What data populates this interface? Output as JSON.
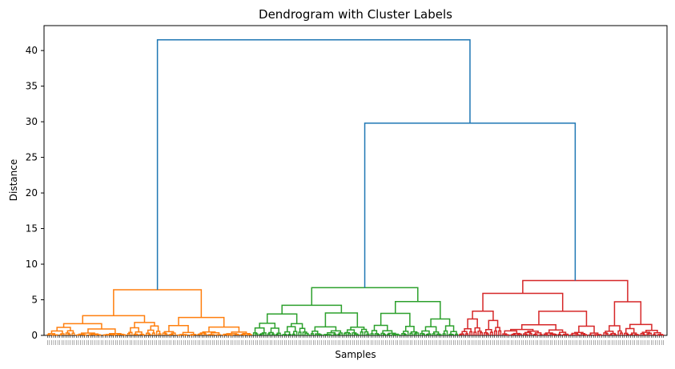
{
  "chart_data": {
    "type": "dendrogram",
    "title": "Dendrogram with Cluster Labels",
    "xlabel": "Samples",
    "ylabel": "Distance",
    "ylim": [
      0,
      43.5
    ],
    "yticks": [
      0,
      5,
      10,
      15,
      20,
      25,
      30,
      35,
      40
    ],
    "n_samples": 300,
    "grid": false,
    "clusters": [
      {
        "color": "#ff7f0e",
        "leaf_range": [
          0,
          100
        ],
        "merge_height": 6.4
      },
      {
        "color": "#2ca02c",
        "leaf_range": [
          100,
          200
        ],
        "merge_height": 6.7
      },
      {
        "color": "#d62728",
        "leaf_range": [
          200,
          300
        ],
        "merge_height": 7.7
      }
    ],
    "top_links": [
      {
        "color": "#1f77b4",
        "height": 29.8,
        "joins": [
          "green",
          "red"
        ]
      },
      {
        "color": "#1f77b4",
        "height": 41.5,
        "joins": [
          "orange",
          "green+red"
        ]
      }
    ]
  }
}
